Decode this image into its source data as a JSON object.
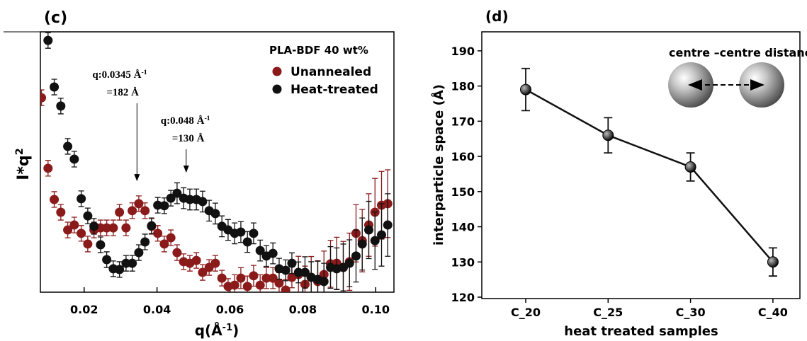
{
  "chart_data": [
    {
      "type": "scatter",
      "title": "(c)",
      "xlabel": {
        "text": "q(Å",
        "sup": "-1",
        "tail": ")"
      },
      "ylabel": {
        "text": "I*q",
        "sup": "2"
      },
      "legend_title": "PLA-BDF 40 wt%",
      "xlim": [
        0.008,
        0.105
      ],
      "xticks": [
        0.02,
        0.04,
        0.06,
        0.08,
        {
          "value": 0.1,
          "label": "0.10"
        }
      ],
      "ylim": [
        0,
        10
      ],
      "series": [
        {
          "name": "Unannealed",
          "color": "#8b1a1a",
          "x": [
            0.0083,
            0.0101,
            0.0118,
            0.0136,
            0.0155,
            0.0173,
            0.0192,
            0.021,
            0.0227,
            0.0245,
            0.0262,
            0.028,
            0.0297,
            0.0315,
            0.0332,
            0.035,
            0.0367,
            0.0385,
            0.0402,
            0.042,
            0.0438,
            0.0455,
            0.0473,
            0.049,
            0.0508,
            0.0525,
            0.0543,
            0.056,
            0.0578,
            0.0595,
            0.0613,
            0.063,
            0.0648,
            0.0665,
            0.0683,
            0.07,
            0.0718,
            0.0735,
            0.0753,
            0.077,
            0.0788,
            0.0806,
            0.0823,
            0.0841,
            0.0858,
            0.0876,
            0.0893,
            0.0911,
            0.0928,
            0.0946,
            0.0963,
            0.0981,
            0.0998,
            0.1016,
            0.1033
          ],
          "values": [
            7.47,
            4.76,
            3.56,
            3.07,
            2.39,
            2.58,
            2.26,
            1.85,
            2.39,
            2.47,
            2.47,
            2.47,
            3.07,
            2.47,
            3.13,
            3.4,
            3.13,
            2.53,
            2.26,
            1.85,
            2.09,
            1.52,
            1.17,
            1.11,
            1.22,
            0.76,
            0.95,
            1.11,
            0.54,
            0.22,
            0.27,
            0.54,
            0.22,
            0.63,
            0.27,
            0.54,
            0.54,
            0.35,
            0.08,
            0.57,
            0.68,
            0.3,
            0.57,
            0.41,
            0.68,
            1.09,
            1.11,
            0.95,
            1.17,
            2.26,
            1.98,
            2.58,
            3.07,
            3.34,
            3.4
          ],
          "errors": [
            0.3,
            0.3,
            0.3,
            0.3,
            0.3,
            0.3,
            0.3,
            0.3,
            0.3,
            0.3,
            0.3,
            0.3,
            0.3,
            0.3,
            0.3,
            0.3,
            0.3,
            0.3,
            0.3,
            0.3,
            0.3,
            0.3,
            0.3,
            0.3,
            0.3,
            0.3,
            0.3,
            0.3,
            0.3,
            0.3,
            0.4,
            0.4,
            0.4,
            0.4,
            0.4,
            0.4,
            0.4,
            0.4,
            0.4,
            0.4,
            0.7,
            0.7,
            0.8,
            0.8,
            0.9,
            0.9,
            1.0,
            1.0,
            1.1,
            1.1,
            1.2,
            1.2,
            1.3,
            1.3,
            1.3
          ]
        },
        {
          "name": "Heat-treated",
          "color": "#111111",
          "x": [
            0.0101,
            0.0118,
            0.0136,
            0.0155,
            0.0173,
            0.0192,
            0.021,
            0.0227,
            0.0245,
            0.0262,
            0.028,
            0.0297,
            0.0315,
            0.0332,
            0.035,
            0.0367,
            0.0385,
            0.0402,
            0.042,
            0.0438,
            0.0455,
            0.0473,
            0.049,
            0.0508,
            0.0525,
            0.0543,
            0.056,
            0.0578,
            0.0595,
            0.0613,
            0.063,
            0.0648,
            0.0665,
            0.0683,
            0.07,
            0.0718,
            0.0735,
            0.0753,
            0.077,
            0.0788,
            0.0806,
            0.0823,
            0.0841,
            0.0858,
            0.0876,
            0.0893,
            0.0911,
            0.0928,
            0.0946,
            0.0963,
            0.0981,
            0.0998,
            0.1016,
            0.1033
          ],
          "values": [
            9.67,
            7.88,
            7.15,
            5.6,
            5.11,
            3.59,
            2.93,
            2.53,
            1.82,
            1.25,
            0.9,
            0.87,
            1.11,
            1.11,
            1.52,
            1.93,
            2.55,
            3.34,
            3.32,
            3.61,
            3.8,
            3.61,
            3.56,
            3.56,
            3.48,
            3.13,
            3.02,
            2.53,
            2.39,
            2.26,
            2.31,
            1.93,
            2.26,
            1.6,
            1.39,
            1.49,
            0.9,
            0.84,
            1.11,
            0.76,
            0.76,
            0.57,
            0.49,
            0.41,
            0.95,
            0.9,
            0.95,
            1.11,
            1.39,
            1.85,
            2.39,
            1.98,
            2.2,
            2.58
          ],
          "errors": [
            0.3,
            0.3,
            0.3,
            0.3,
            0.3,
            0.3,
            0.3,
            0.3,
            0.3,
            0.3,
            0.3,
            0.3,
            0.3,
            0.3,
            0.3,
            0.3,
            0.3,
            0.3,
            0.3,
            0.3,
            0.4,
            0.4,
            0.4,
            0.4,
            0.4,
            0.4,
            0.4,
            0.4,
            0.4,
            0.4,
            0.4,
            0.4,
            0.4,
            0.4,
            0.4,
            0.4,
            0.4,
            0.4,
            0.4,
            0.4,
            0.6,
            0.6,
            0.7,
            0.7,
            0.8,
            0.8,
            0.9,
            0.9,
            1.0,
            1.0,
            1.1,
            1.1,
            1.2,
            1.2
          ]
        }
      ],
      "annotations": [
        {
          "text": "q:0.0345 Å",
          "sup": "-1",
          "value_text": "=182 Å",
          "x": 0.0345,
          "arrow_y": 4.29
        },
        {
          "text": "q:0.048 Å",
          "sup": "-1",
          "value_text": "=130 Å",
          "x": 0.048,
          "arrow_y": 4.62
        }
      ]
    },
    {
      "type": "line",
      "title": "(d)",
      "xlabel": "heat treated samples",
      "ylabel": "interparticle space (Å)",
      "inset_label": "centre –centre distance",
      "categories": [
        "C_20",
        "C_25",
        "C_30",
        "C_40"
      ],
      "values": [
        179,
        166,
        157,
        130
      ],
      "errors": [
        6,
        5,
        4,
        4
      ],
      "color": "#111111",
      "ylim": [
        119.6,
        195.4
      ],
      "yticks": [
        120,
        130,
        140,
        150,
        160,
        170,
        180,
        190
      ]
    }
  ]
}
